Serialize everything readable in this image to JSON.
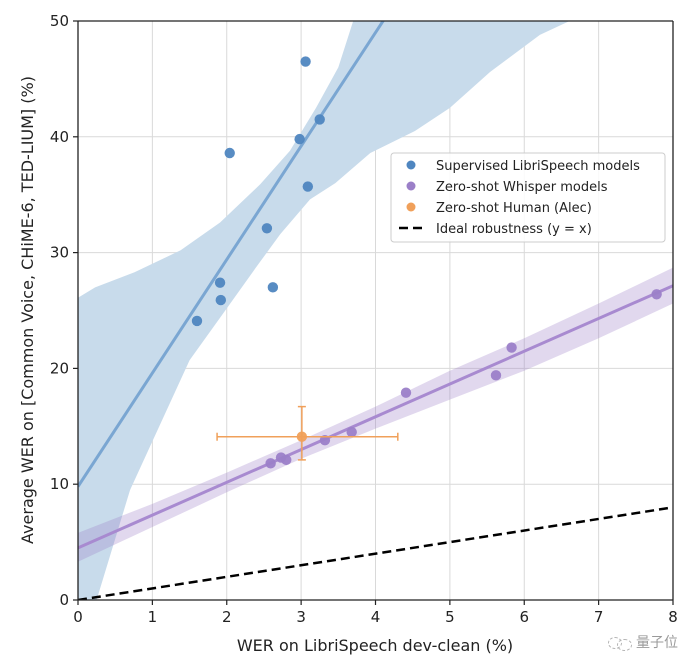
{
  "chart_data": {
    "type": "scatter",
    "title": "",
    "xlabel": "WER on LibriSpeech dev-clean (%)",
    "ylabel": "Average WER on [Common Voice, CHiME-6, TED-LIUM] (%)",
    "xlim": [
      0,
      8
    ],
    "ylim": [
      0,
      50
    ],
    "xticks": [
      0,
      1,
      2,
      3,
      4,
      5,
      6,
      7,
      8
    ],
    "yticks": [
      0,
      10,
      20,
      30,
      40,
      50
    ],
    "grid": true,
    "legend_position": "upper-right (below top)",
    "series": [
      {
        "name": "Supervised LibriSpeech models",
        "color": "#4f86c0",
        "marker": "circle",
        "points": [
          {
            "x": 3.06,
            "y": 46.5
          },
          {
            "x": 3.25,
            "y": 41.5
          },
          {
            "x": 2.98,
            "y": 39.8
          },
          {
            "x": 2.04,
            "y": 38.6
          },
          {
            "x": 3.09,
            "y": 35.7
          },
          {
            "x": 2.54,
            "y": 32.1
          },
          {
            "x": 1.91,
            "y": 27.4
          },
          {
            "x": 2.62,
            "y": 27.0
          },
          {
            "x": 1.92,
            "y": 25.9
          },
          {
            "x": 1.6,
            "y": 24.1
          }
        ],
        "fit": {
          "intercept": 9.8,
          "slope": 9.8
        },
        "confidence_band": {
          "upper": [
            [
              0,
              26.1
            ],
            [
              0.23,
              27.0
            ],
            [
              0.76,
              28.3
            ],
            [
              1.38,
              30.2
            ],
            [
              1.91,
              32.6
            ],
            [
              2.45,
              35.9
            ],
            [
              2.85,
              38.8
            ],
            [
              3.2,
              42.5
            ],
            [
              3.5,
              46.0
            ],
            [
              3.7,
              50.0
            ]
          ],
          "lower": [
            [
              0,
              0
            ],
            [
              0.25,
              0
            ],
            [
              0.7,
              9.5
            ],
            [
              1.5,
              20.7
            ],
            [
              1.98,
              25.0
            ],
            [
              2.38,
              28.6
            ],
            [
              2.72,
              31.6
            ],
            [
              3.12,
              34.6
            ],
            [
              3.46,
              36.0
            ],
            [
              3.93,
              38.6
            ],
            [
              4.53,
              40.5
            ],
            [
              5.0,
              42.5
            ],
            [
              5.54,
              45.6
            ],
            [
              6.21,
              48.8
            ],
            [
              6.61,
              50.0
            ]
          ]
        }
      },
      {
        "name": "Zero-shot Whisper models",
        "color": "#9b7fc8",
        "marker": "circle",
        "points": [
          {
            "x": 2.59,
            "y": 11.8
          },
          {
            "x": 2.73,
            "y": 12.3
          },
          {
            "x": 2.8,
            "y": 12.1
          },
          {
            "x": 3.32,
            "y": 13.8
          },
          {
            "x": 3.68,
            "y": 14.5
          },
          {
            "x": 4.41,
            "y": 17.9
          },
          {
            "x": 5.62,
            "y": 19.4
          },
          {
            "x": 5.83,
            "y": 21.8
          },
          {
            "x": 7.78,
            "y": 26.4
          }
        ],
        "fit": {
          "intercept": 4.5,
          "slope": 2.83
        },
        "confidence_band": {
          "upper": [
            [
              0,
              5.8
            ],
            [
              1,
              8.3
            ],
            [
              2,
              11.0
            ],
            [
              3,
              13.8
            ],
            [
              4,
              16.7
            ],
            [
              5,
              19.8
            ],
            [
              6,
              22.6
            ],
            [
              7,
              25.6
            ],
            [
              8,
              28.7
            ]
          ],
          "lower": [
            [
              0,
              3.3
            ],
            [
              1,
              6.3
            ],
            [
              2,
              9.3
            ],
            [
              3,
              12.2
            ],
            [
              4,
              14.8
            ],
            [
              5,
              17.3
            ],
            [
              6,
              19.8
            ],
            [
              7,
              22.6
            ],
            [
              8,
              25.6
            ]
          ]
        }
      },
      {
        "name": "Zero-shot Human (Alec)",
        "color": "#f0a05a",
        "marker": "circle",
        "points": [
          {
            "x": 3.01,
            "y": 14.1,
            "xerr": [
              1.87,
              4.3
            ],
            "yerr": [
              12.1,
              16.7
            ]
          }
        ]
      },
      {
        "name": "Ideal robustness (y = x)",
        "color": "#000000",
        "style": "dashed",
        "line": [
          [
            0,
            0
          ],
          [
            8,
            8
          ]
        ]
      }
    ]
  },
  "watermark": {
    "text": "量子位"
  }
}
